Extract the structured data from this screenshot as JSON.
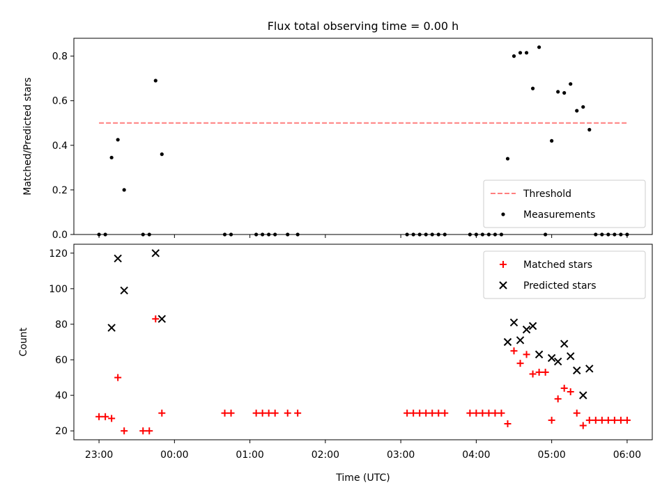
{
  "figure_title": "Flux total observing time = 0.00 h",
  "x_axis": {
    "label": "Time (UTC)",
    "ticks": [
      "23:00",
      "00:00",
      "01:00",
      "02:00",
      "03:00",
      "04:00",
      "05:00",
      "06:00"
    ]
  },
  "chart_data": [
    {
      "type": "scatter",
      "title": "Flux total observing time = 0.00 h",
      "ylabel": "Matched/Predicted stars",
      "ylim": [
        0,
        0.88
      ],
      "yticks": [
        "0.0",
        "0.2",
        "0.4",
        "0.6",
        "0.8"
      ],
      "xlim": [
        "22:40",
        "06:20"
      ],
      "legend_position": "lower-right",
      "threshold": {
        "name": "Threshold",
        "value": 0.5,
        "x_start": "23:00",
        "x_end": "06:00",
        "color": "#ff7f7f"
      },
      "series": [
        {
          "name": "Measurements",
          "marker": "dot",
          "color": "#000000",
          "points": [
            [
              "23:00",
              0
            ],
            [
              "23:05",
              0
            ],
            [
              "23:10",
              0.345
            ],
            [
              "23:15",
              0.425
            ],
            [
              "23:20",
              0.2
            ],
            [
              "23:35",
              0
            ],
            [
              "23:40",
              0
            ],
            [
              "23:45",
              0.69
            ],
            [
              "23:50",
              0.36
            ],
            [
              "00:40",
              0
            ],
            [
              "00:45",
              0
            ],
            [
              "01:05",
              0
            ],
            [
              "01:10",
              0
            ],
            [
              "01:15",
              0
            ],
            [
              "01:20",
              0
            ],
            [
              "01:30",
              0
            ],
            [
              "01:38",
              0
            ],
            [
              "03:05",
              0
            ],
            [
              "03:10",
              0
            ],
            [
              "03:15",
              0
            ],
            [
              "03:20",
              0
            ],
            [
              "03:25",
              0
            ],
            [
              "03:30",
              0
            ],
            [
              "03:35",
              0
            ],
            [
              "03:55",
              0
            ],
            [
              "04:00",
              0
            ],
            [
              "04:05",
              0
            ],
            [
              "04:10",
              0
            ],
            [
              "04:15",
              0
            ],
            [
              "04:20",
              0
            ],
            [
              "04:25",
              0.34
            ],
            [
              "04:30",
              0.8
            ],
            [
              "04:35",
              0.815
            ],
            [
              "04:40",
              0.815
            ],
            [
              "04:45",
              0.655
            ],
            [
              "04:50",
              0.84
            ],
            [
              "04:55",
              0
            ],
            [
              "05:00",
              0.42
            ],
            [
              "05:05",
              0.64
            ],
            [
              "05:10",
              0.635
            ],
            [
              "05:15",
              0.675
            ],
            [
              "05:20",
              0.555
            ],
            [
              "05:25",
              0.572
            ],
            [
              "05:30",
              0.47
            ],
            [
              "05:35",
              0
            ],
            [
              "05:40",
              0
            ],
            [
              "05:45",
              0
            ],
            [
              "05:50",
              0
            ],
            [
              "05:55",
              0
            ],
            [
              "06:00",
              0
            ]
          ]
        }
      ]
    },
    {
      "type": "scatter",
      "ylabel": "Count",
      "ylim": [
        15,
        125
      ],
      "yticks": [
        "20",
        "40",
        "60",
        "80",
        "100",
        "120"
      ],
      "xlim": [
        "22:40",
        "06:20"
      ],
      "legend_position": "upper-right",
      "series": [
        {
          "name": "Matched stars",
          "marker": "plus",
          "color": "#ff0000",
          "points": [
            [
              "23:00",
              28
            ],
            [
              "23:05",
              28
            ],
            [
              "23:10",
              27
            ],
            [
              "23:15",
              50
            ],
            [
              "23:20",
              20
            ],
            [
              "23:35",
              20
            ],
            [
              "23:40",
              20
            ],
            [
              "23:45",
              83
            ],
            [
              "23:50",
              30
            ],
            [
              "00:40",
              30
            ],
            [
              "00:45",
              30
            ],
            [
              "01:05",
              30
            ],
            [
              "01:10",
              30
            ],
            [
              "01:15",
              30
            ],
            [
              "01:20",
              30
            ],
            [
              "01:30",
              30
            ],
            [
              "01:38",
              30
            ],
            [
              "03:05",
              30
            ],
            [
              "03:10",
              30
            ],
            [
              "03:15",
              30
            ],
            [
              "03:20",
              30
            ],
            [
              "03:25",
              30
            ],
            [
              "03:30",
              30
            ],
            [
              "03:35",
              30
            ],
            [
              "03:55",
              30
            ],
            [
              "04:00",
              30
            ],
            [
              "04:05",
              30
            ],
            [
              "04:10",
              30
            ],
            [
              "04:15",
              30
            ],
            [
              "04:20",
              30
            ],
            [
              "04:25",
              24
            ],
            [
              "04:30",
              65
            ],
            [
              "04:35",
              58
            ],
            [
              "04:40",
              63
            ],
            [
              "04:45",
              52
            ],
            [
              "04:50",
              53
            ],
            [
              "04:55",
              53
            ],
            [
              "05:00",
              26
            ],
            [
              "05:05",
              38
            ],
            [
              "05:10",
              44
            ],
            [
              "05:15",
              42
            ],
            [
              "05:20",
              30
            ],
            [
              "05:25",
              23
            ],
            [
              "05:30",
              26
            ],
            [
              "05:35",
              26
            ],
            [
              "05:40",
              26
            ],
            [
              "05:45",
              26
            ],
            [
              "05:50",
              26
            ],
            [
              "05:55",
              26
            ],
            [
              "06:00",
              26
            ]
          ]
        },
        {
          "name": "Predicted stars",
          "marker": "x",
          "color": "#000000",
          "points": [
            [
              "23:10",
              78
            ],
            [
              "23:15",
              117
            ],
            [
              "23:20",
              99
            ],
            [
              "23:45",
              120
            ],
            [
              "23:50",
              83
            ],
            [
              "04:25",
              70
            ],
            [
              "04:30",
              81
            ],
            [
              "04:35",
              71
            ],
            [
              "04:40",
              77
            ],
            [
              "04:45",
              79
            ],
            [
              "04:50",
              63
            ],
            [
              "05:00",
              61
            ],
            [
              "05:05",
              59
            ],
            [
              "05:10",
              69
            ],
            [
              "05:15",
              62
            ],
            [
              "05:20",
              54
            ],
            [
              "05:25",
              40
            ],
            [
              "05:30",
              55
            ]
          ]
        }
      ]
    }
  ]
}
